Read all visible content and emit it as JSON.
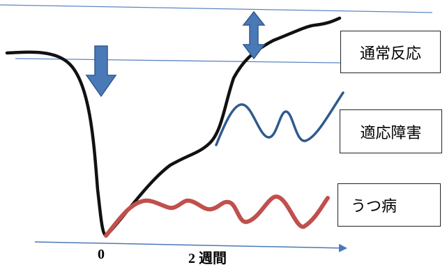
{
  "labels": {
    "normal_reaction": "通常反応",
    "adjustment_disorder": "適応障害",
    "depression": "うつ病"
  },
  "axis": {
    "tick_zero": "0",
    "tick_two_weeks": "2 週間"
  },
  "colors": {
    "guide_line": "#5b86c6",
    "main_curve": "#111111",
    "adjustment_wave": "#2f5a8e",
    "depression_wave": "#c0504d",
    "arrow_fill": "#4a79b8",
    "arrow_stroke": "#2f5a8e",
    "axis_line": "#4a79b8"
  }
}
